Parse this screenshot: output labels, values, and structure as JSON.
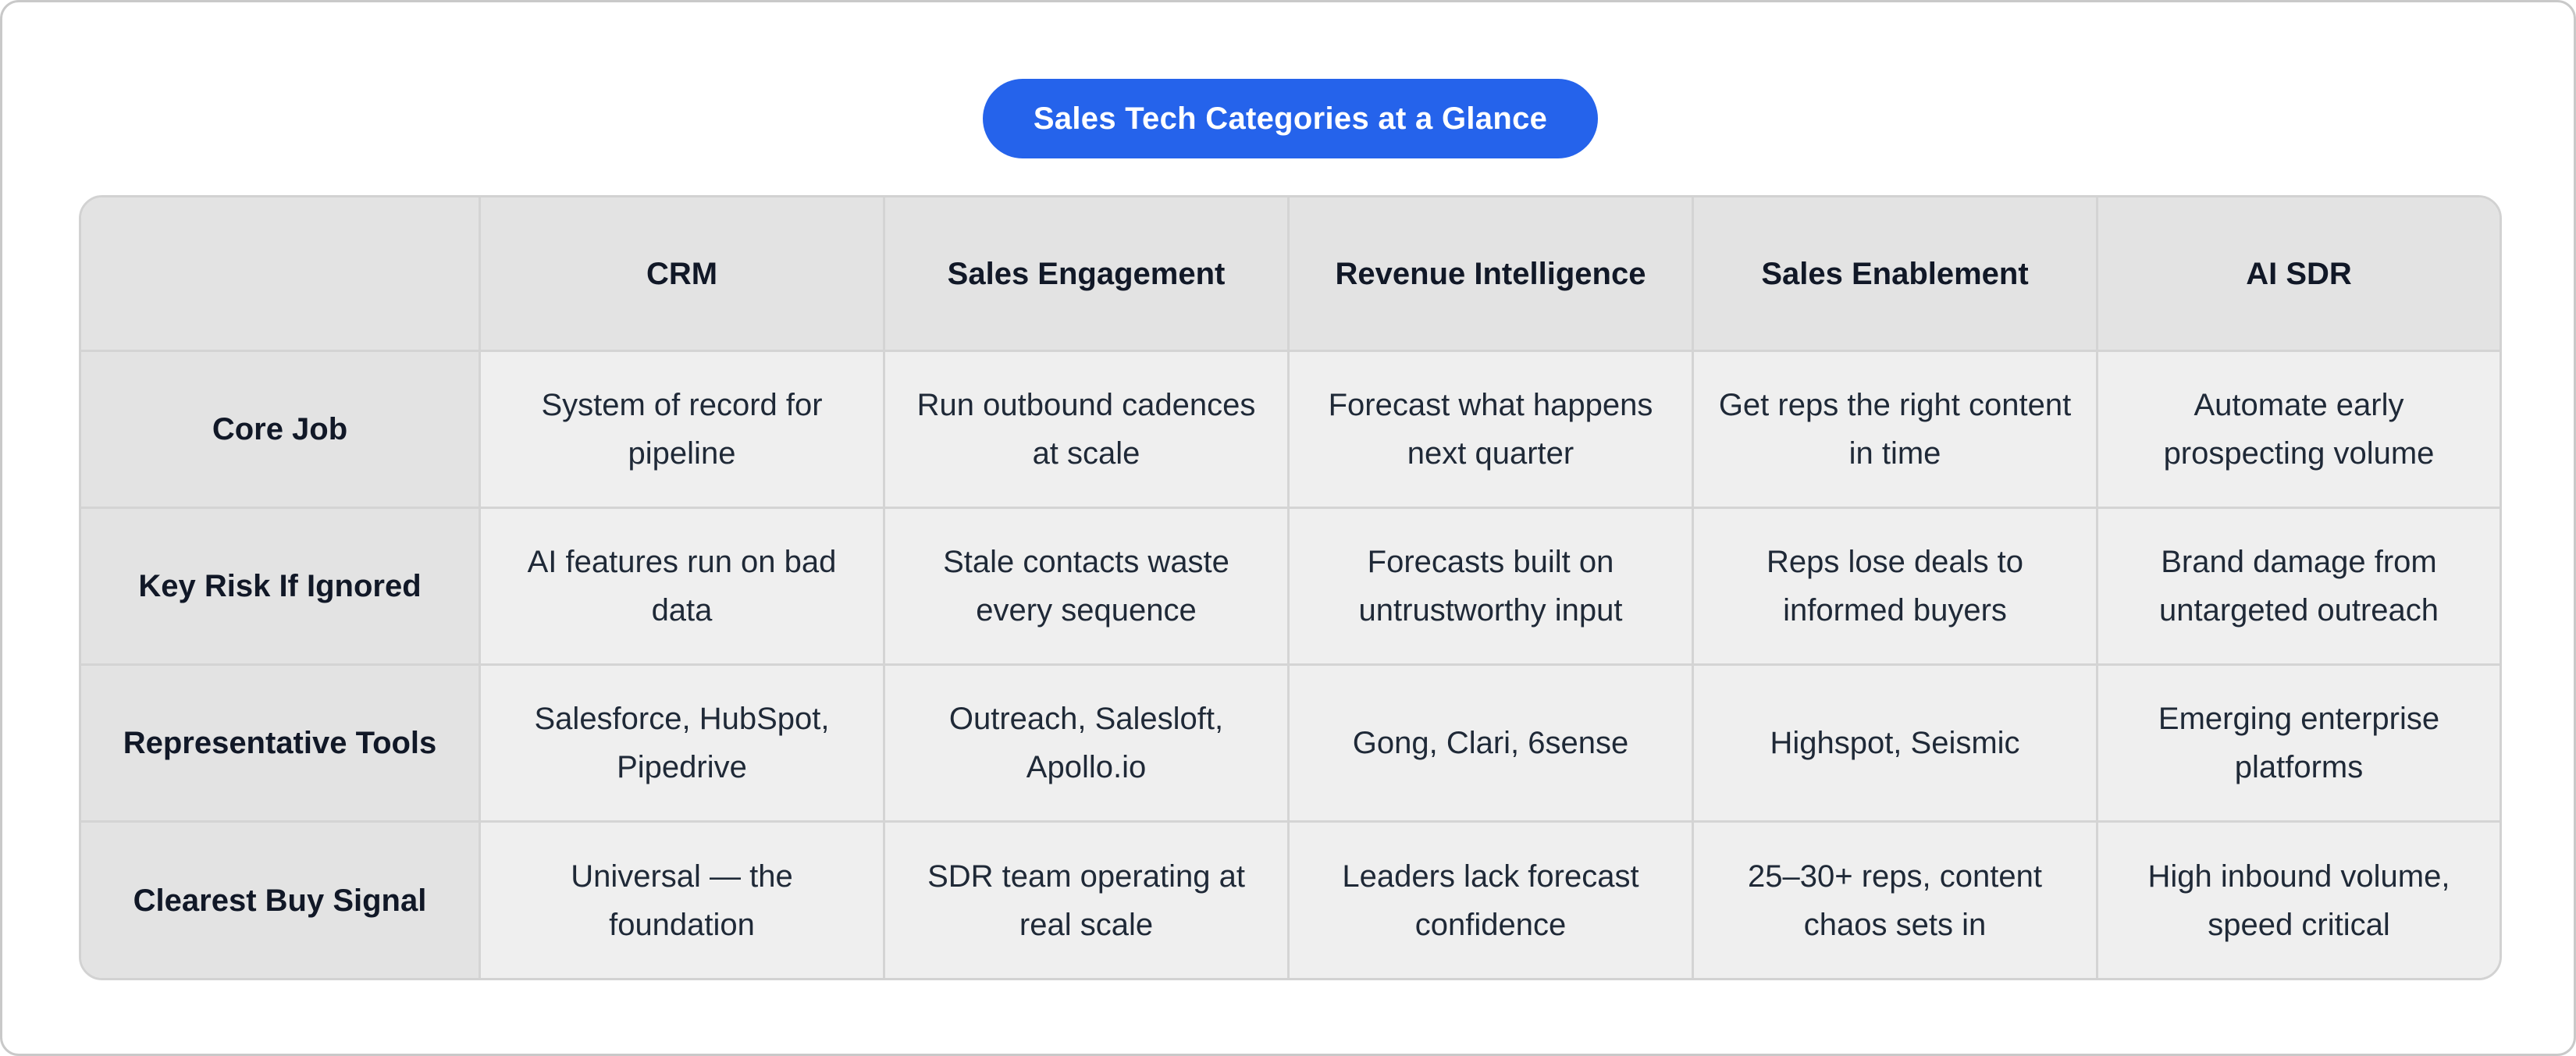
{
  "title": "Sales Tech Categories at a Glance",
  "columns": [
    "",
    "CRM",
    "Sales Engagement",
    "Revenue Intelligence",
    "Sales Enablement",
    "AI SDR"
  ],
  "rows": [
    {
      "label": "Core Job",
      "cells": [
        "System of record for pipeline",
        "Run outbound cadences at scale",
        "Forecast what happens next quarter",
        "Get reps the right content in time",
        "Automate early prospecting volume"
      ]
    },
    {
      "label": "Key Risk If Ignored",
      "cells": [
        "AI features run on bad data",
        "Stale contacts waste every sequence",
        "Forecasts built on untrustworthy input",
        "Reps lose deals to informed buyers",
        "Brand damage from untargeted outreach"
      ]
    },
    {
      "label": "Representative Tools",
      "cells": [
        "Salesforce, HubSpot, Pipedrive",
        "Outreach, Salesloft, Apollo.io",
        "Gong, Clari, 6sense",
        "Highspot, Seismic",
        "Emerging enterprise platforms"
      ]
    },
    {
      "label": "Clearest Buy Signal",
      "cells": [
        "Universal — the foundation",
        "SDR team operating at real scale",
        "Leaders lack forecast confidence",
        "25–30+ reps, content chaos sets in",
        "High inbound volume, speed critical"
      ]
    }
  ],
  "colors": {
    "accent": "#2563eb",
    "header_bg": "#e3e3e3",
    "cell_bg": "#efefef",
    "border": "#d4d4d4"
  }
}
